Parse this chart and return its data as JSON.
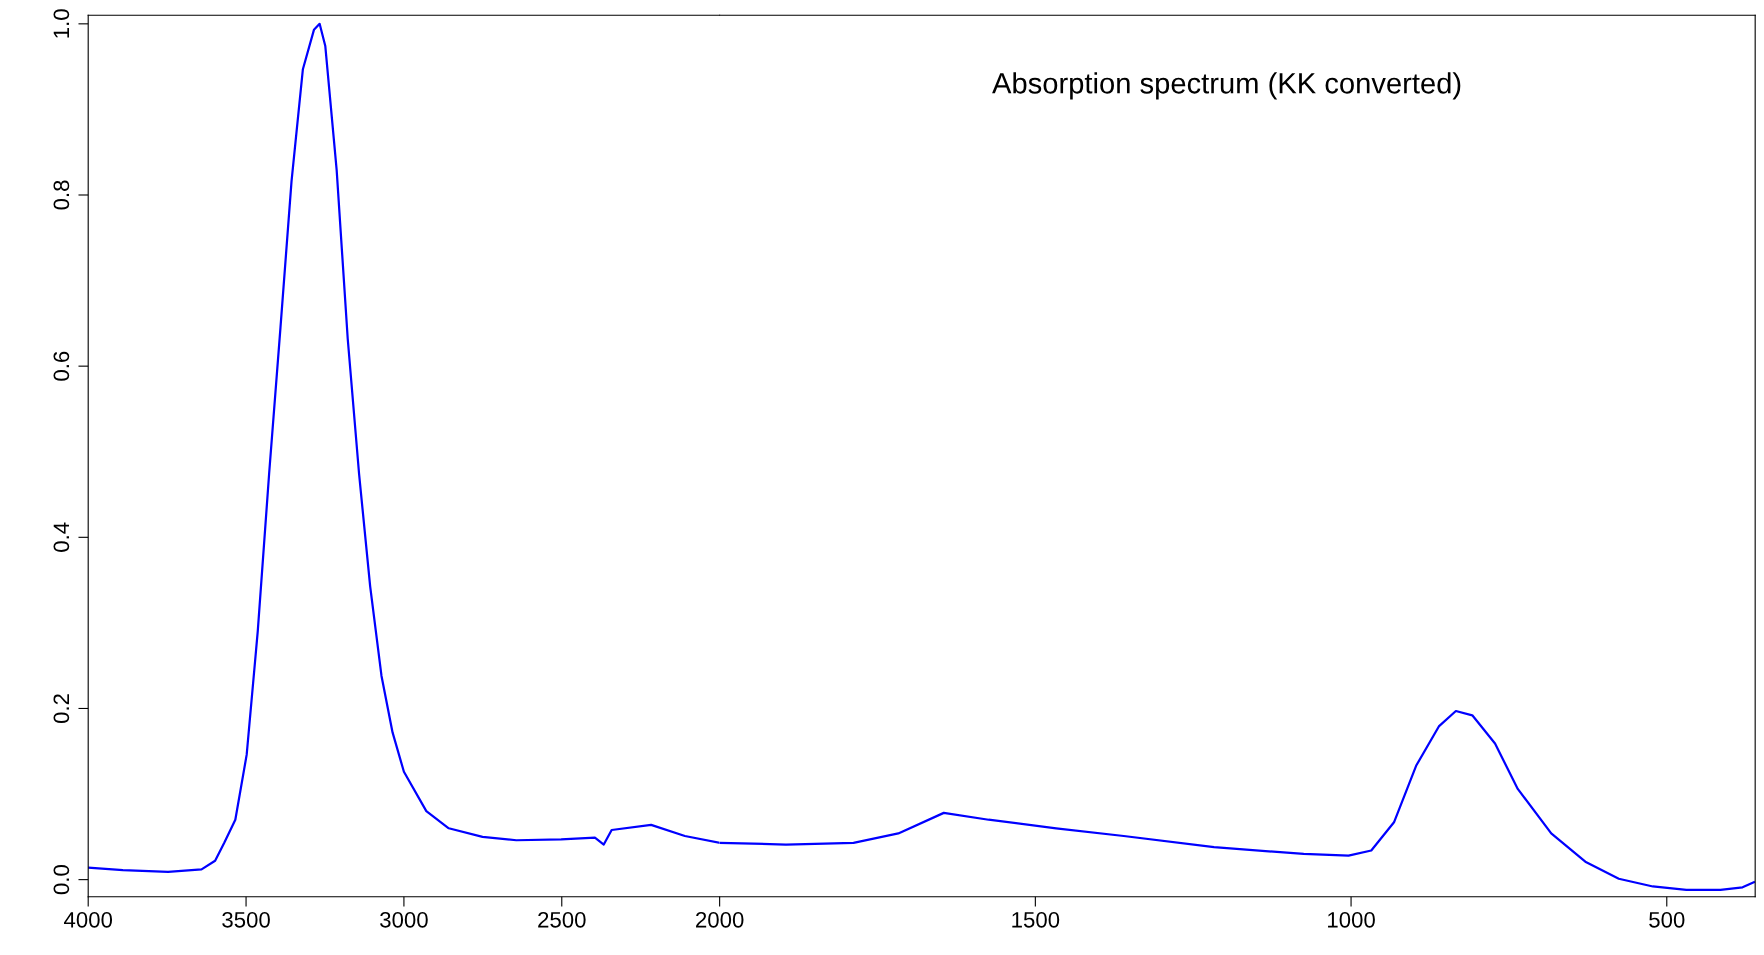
{
  "chart_data": [
    {
      "type": "line",
      "xlim": [
        4000,
        2000
      ],
      "xticks": [
        4000,
        3500,
        3000,
        2500,
        2000
      ],
      "ylim": [
        -0.02,
        1.01
      ],
      "yticks": [
        {
          "value": 0,
          "label": "0.0"
        },
        0.2,
        0.4,
        0.6,
        0.8,
        {
          "value": 1,
          "label": "1.0"
        }
      ],
      "series": [
        {
          "color": "#0000ff",
          "x": [
            4000,
            3890,
            3747,
            3641,
            3598,
            3569,
            3534,
            3498,
            3463,
            3427,
            3391,
            3356,
            3320,
            3285,
            3267,
            3249,
            3213,
            3178,
            3142,
            3107,
            3071,
            3036,
            3000,
            2929,
            2858,
            2751,
            2644,
            2502,
            2395,
            2367,
            2342,
            2217,
            2110,
            2000
          ],
          "values": [
            0.014,
            0.011,
            0.009,
            0.012,
            0.022,
            0.043,
            0.07,
            0.146,
            0.29,
            0.474,
            0.645,
            0.816,
            0.947,
            0.993,
            1.0,
            0.974,
            0.829,
            0.632,
            0.474,
            0.343,
            0.238,
            0.172,
            0.126,
            0.08,
            0.06,
            0.05,
            0.046,
            0.047,
            0.049,
            0.041,
            0.058,
            0.064,
            0.051,
            0.043
          ]
        }
      ]
    },
    {
      "type": "line",
      "annotations": [
        "Absorption spectrum (KK converted)"
      ],
      "tick_labels": "x",
      "xlim": [
        2000,
        360
      ],
      "xticks": [
        1500,
        1000,
        500
      ],
      "ylim": [
        -0.02,
        1.01
      ],
      "series": [
        {
          "color": "#0000ff",
          "x": [
            2000,
            1895,
            1788,
            1717,
            1645,
            1574,
            1467,
            1360,
            1217,
            1075,
            1004,
            968,
            932,
            897,
            861,
            834,
            808,
            772,
            736,
            683,
            629,
            576,
            522,
            469,
            415,
            380,
            362
          ],
          "values": [
            0.043,
            0.041,
            0.043,
            0.054,
            0.078,
            0.07,
            0.06,
            0.051,
            0.038,
            0.03,
            0.028,
            0.034,
            0.067,
            0.133,
            0.179,
            0.197,
            0.192,
            0.159,
            0.106,
            0.054,
            0.021,
            0.001,
            -0.008,
            -0.012,
            -0.012,
            -0.009,
            -0.003
          ]
        }
      ]
    }
  ]
}
